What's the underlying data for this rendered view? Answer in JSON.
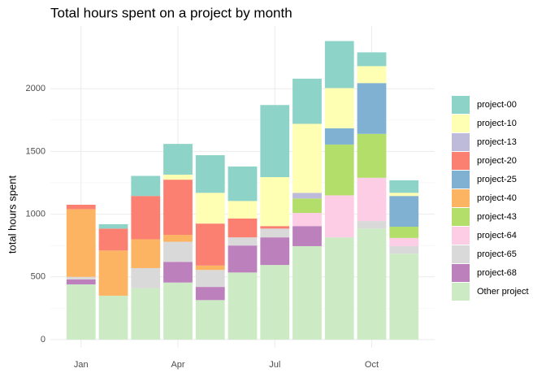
{
  "chart_data": {
    "type": "stacked-bar",
    "title": "Total hours spent on a project by month",
    "y_label": "total hours spent",
    "categories": [
      "Jan",
      null,
      null,
      "Apr",
      null,
      null,
      "Jul",
      null,
      null,
      "Oct",
      null
    ],
    "series": [
      {
        "name": "project-00",
        "color": "#8dd3c7",
        "values": [
          0,
          35,
          160,
          245,
          300,
          275,
          575,
          360,
          375,
          110,
          100
        ]
      },
      {
        "name": "project-10",
        "color": "#ffffb3",
        "values": [
          0,
          0,
          0,
          40,
          245,
          140,
          390,
          550,
          320,
          135,
          25
        ]
      },
      {
        "name": "project-13",
        "color": "#bebada",
        "values": [
          0,
          0,
          0,
          0,
          0,
          0,
          0,
          45,
          0,
          0,
          0
        ]
      },
      {
        "name": "project-20",
        "color": "#fb8072",
        "values": [
          35,
          175,
          345,
          440,
          335,
          150,
          20,
          0,
          0,
          0,
          0
        ]
      },
      {
        "name": "project-25",
        "color": "#80b1d3",
        "values": [
          0,
          0,
          0,
          0,
          0,
          0,
          0,
          0,
          130,
          405,
          245
        ]
      },
      {
        "name": "project-40",
        "color": "#fdb462",
        "values": [
          540,
          360,
          230,
          55,
          35,
          0,
          0,
          0,
          0,
          0,
          0
        ]
      },
      {
        "name": "project-43",
        "color": "#b3de69",
        "values": [
          0,
          0,
          0,
          0,
          0,
          0,
          0,
          115,
          405,
          350,
          90
        ]
      },
      {
        "name": "project-64",
        "color": "#fccde5",
        "values": [
          0,
          0,
          0,
          0,
          0,
          0,
          0,
          105,
          335,
          345,
          65
        ]
      },
      {
        "name": "project-65",
        "color": "#d9d9d9",
        "values": [
          20,
          0,
          160,
          160,
          135,
          65,
          70,
          0,
          0,
          60,
          60
        ]
      },
      {
        "name": "project-68",
        "color": "#bc80bd",
        "values": [
          40,
          0,
          0,
          165,
          105,
          215,
          220,
          160,
          0,
          0,
          0
        ]
      },
      {
        "name": "Other project",
        "color": "#ccebc5",
        "values": [
          440,
          350,
          410,
          455,
          315,
          535,
          595,
          745,
          815,
          885,
          685
        ]
      }
    ],
    "ylim": [
      -65,
      2500
    ],
    "yticks": [
      0,
      500,
      1000,
      1500,
      2000
    ],
    "grid": true
  }
}
